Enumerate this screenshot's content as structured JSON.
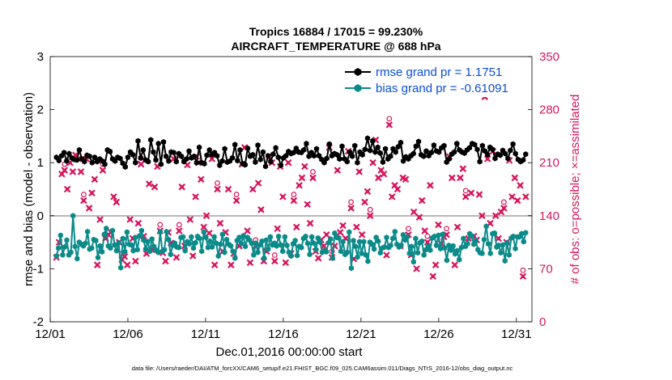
{
  "chart_data": {
    "type": "line",
    "title": "Tropics 16884 / 17015 = 99.230%",
    "subtitle": "AIRCRAFT_TEMPERATURE @ 688 hPa",
    "xlabel": "Dec.01,2016 00:00:00 start",
    "ylabel_left": "rmse and bias (model - observation)",
    "ylabel_right": "# of obs: o=possible; ×=assimilated",
    "footnote": "data file: /Users/raeder/DAI/ATM_forcXX/CAM6_setup/f.e21.FHIST_BGC.f09_025.CAM6assim.011/Diags_NTrS_2016-12/obs_diag_output.nc",
    "x_range": [
      1,
      32
    ],
    "ylim_left": [
      -2,
      3
    ],
    "ylim_right": [
      0,
      350
    ],
    "x_ticks": [
      "12/01",
      "12/06",
      "12/11",
      "12/16",
      "12/21",
      "12/26",
      "12/31"
    ],
    "y_ticks_left": [
      "-2",
      "-1",
      "0",
      "1",
      "2",
      "3"
    ],
    "y_ticks_right": [
      "0",
      "70",
      "140",
      "210",
      "280",
      "350"
    ],
    "colors": {
      "rmse": "#000000",
      "bias": "#0b8a8a",
      "obs": "#d6185f",
      "zero": "#b8b8b8",
      "legend_text": "#0b4fd6"
    },
    "series": [
      {
        "name": "rmse grand pr = 1.1751",
        "axis": "left",
        "values": [
          1.1,
          1.04,
          1.13,
          1.19,
          1.03,
          1.17,
          1.09,
          1.06,
          1.05,
          1.24,
          1.07,
          1.02,
          1.14,
          1.12,
          1.0,
          1.1,
          1.02,
          1.07,
          1.03,
          0.97,
          1.24,
          1.21,
          1.07,
          1.03,
          1.1,
          1.08,
          0.99,
          0.92,
          1.1,
          1.2,
          1.15,
          1.0,
          1.41,
          1.09,
          1.24,
          1.05,
          1.02,
          1.43,
          1.2,
          1.05,
          1.36,
          0.97,
          1.39,
          1.12,
          1.03,
          1.2,
          1.19,
          1.02,
          1.17,
          1.12,
          1.02,
          1.07,
          1.22,
          1.09,
          1.12,
          1.0,
          1.29,
          1.0,
          0.98,
          1.14,
          1.24,
          1.15,
          1.19,
          1.13,
          0.95,
          1.03,
          1.26,
          1.01,
          1.03,
          1.09,
          1.34,
          1.04,
          1.24,
          0.98,
          0.96,
          1.27,
          1.12,
          1.15,
          1.01,
          1.33,
          1.06,
          1.2,
          0.93,
          1.13,
          1.02,
          1.16,
          1.28,
          1.1,
          0.95,
          1.09,
          1.13,
          1.21,
          1.17,
          1.19,
          1.27,
          1.2,
          1.19,
          1.24,
          1.36,
          1.12,
          1.19,
          1.13,
          1.26,
          1.13,
          1.06,
          1.0,
          1.08,
          1.35,
          1.13,
          1.17,
          1.15,
          1.07,
          1.31,
          1.07,
          1.02,
          1.2,
          1.12,
          1.32,
          1.0,
          1.2,
          1.15,
          1.25,
          1.46,
          1.23,
          1.41,
          1.2,
          1.29,
          1.18,
          1.01,
          1.26,
          1.07,
          1.12,
          1.26,
          1.2,
          1.3,
          1.38,
          1.03,
          1.11,
          1.07,
          1.13,
          1.17,
          1.31,
          1.4,
          1.15,
          1.12,
          1.22,
          1.13,
          1.19,
          1.33,
          1.22,
          1.2,
          1.28,
          1.32,
          1.01,
          1.07,
          1.16,
          1.2,
          1.36,
          1.24,
          1.2,
          1.18,
          1.24,
          1.28,
          1.36,
          1.34,
          1.25,
          1.02,
          1.32,
          1.22,
          1.15,
          1.29,
          1.25,
          1.08,
          1.16,
          1.14,
          1.23,
          1.17,
          1.08,
          1.23,
          1.35,
          1.17,
          1.06,
          1.02,
          1.05,
          1.16
        ]
      },
      {
        "name": "bias grand pr = -0.61091",
        "axis": "left",
        "values": [
          -0.76,
          -0.61,
          -0.37,
          -0.74,
          -0.59,
          -0.46,
          -0.74,
          -0.69,
          0.0,
          -0.58,
          -0.81,
          -0.5,
          -0.54,
          -0.57,
          -0.52,
          -0.3,
          -0.63,
          -0.61,
          -0.45,
          -0.47,
          -0.79,
          -0.57,
          -0.68,
          -0.35,
          -0.24,
          -0.57,
          -0.61,
          -0.28,
          -0.55,
          -0.66,
          -0.51,
          -0.98,
          -0.43,
          -0.68,
          -0.31,
          -0.54,
          -0.55,
          -0.66,
          -0.41,
          -0.64,
          -0.38,
          -0.28,
          -0.46,
          -0.63,
          -0.49,
          -0.67,
          -0.44,
          -0.58,
          -0.65,
          -0.69,
          -0.31,
          -0.67,
          -0.64,
          -0.3,
          -0.45,
          -0.73,
          -0.56,
          -0.52,
          -0.59,
          -0.6,
          -0.41,
          -0.4,
          -0.66,
          -0.49,
          -0.53,
          -0.4,
          -0.61,
          -0.51,
          -0.39,
          -0.43,
          -0.67,
          -0.31,
          -0.41,
          -0.6,
          -0.48,
          -0.59,
          -0.4,
          -0.52,
          -0.76,
          -0.54,
          -0.35,
          -0.69,
          -0.45,
          -0.54,
          -0.57,
          -0.67,
          -0.8,
          -0.47,
          -0.41,
          -0.53,
          -0.38,
          -0.58,
          -0.41,
          -0.46,
          -0.52,
          -0.74,
          -0.52,
          -0.69,
          -0.55,
          -0.48,
          -0.8,
          -0.46,
          -0.63,
          -0.4,
          -0.55,
          -0.52,
          -0.57,
          -0.39,
          -0.55,
          -0.67,
          -0.4,
          -0.56,
          -0.69,
          -0.76,
          -0.53,
          -0.47,
          -0.75,
          -0.58,
          -0.6,
          -0.43,
          -0.39,
          -0.52,
          -0.73,
          -0.4,
          -0.52,
          -0.64,
          -0.42,
          -0.5,
          -0.69,
          -0.66,
          -0.68,
          -0.51,
          -0.44,
          -0.8,
          -0.33,
          -0.41,
          -0.42,
          -0.67,
          -0.49,
          -0.73,
          -0.69,
          -0.31,
          -0.99,
          -0.47,
          -0.58,
          -0.78,
          -0.49,
          -0.71,
          -0.49,
          -0.74,
          -0.86,
          -0.5,
          -0.54,
          -0.63,
          -0.41,
          -0.48,
          -0.7,
          -0.61,
          -0.59,
          -0.41,
          -0.6,
          -0.56,
          -0.43,
          -0.3,
          -0.54,
          -0.59,
          -0.56,
          -0.36,
          -0.46,
          -0.4,
          -0.71,
          -0.58,
          -0.87,
          -0.43,
          -0.7,
          -0.51,
          -0.48,
          -0.74,
          -0.64,
          -0.57,
          -0.65,
          -0.42,
          -0.39,
          -0.56,
          -0.37,
          -0.62,
          -0.35,
          -0.61,
          -0.84,
          -0.56,
          -0.65,
          -0.57,
          -0.72,
          -0.66,
          -0.83,
          -0.6,
          -0.43,
          -0.58,
          -0.53,
          -0.34,
          -0.38,
          -0.54,
          -0.47,
          -0.64,
          -0.7,
          -0.71,
          -0.45,
          -0.2,
          -0.53,
          -0.71,
          -0.34,
          -0.33,
          -0.59,
          -0.56,
          -0.7,
          -0.55,
          -0.85,
          -0.51,
          -0.74,
          -0.42,
          -0.39,
          -0.62,
          -0.4,
          -0.4,
          -0.34,
          -0.49,
          -0.32
        ]
      },
      {
        "name": "# of obs assimilated",
        "axis": "right",
        "marker": "x",
        "values": [
          85,
          105,
          195,
          200,
          175,
          210,
          198,
          220,
          215,
          198,
          160,
          215,
          150,
          170,
          188,
          75,
          135,
          200,
          110,
          115,
          118,
          165,
          158,
          105,
          82,
          86,
          75,
          135,
          110,
          80,
          130,
          208,
          113,
          90,
          182,
          95,
          178,
          205,
          120,
          91,
          80,
          118,
          104,
          215,
          85,
          120,
          178,
          100,
          207,
          135,
          87,
          165,
          210,
          188,
          125,
          140,
          117,
          215,
          75,
          175,
          130,
          93,
          118,
          175,
          75,
          90,
          160,
          100,
          208,
          230,
          120,
          78,
          175,
          100,
          183,
          148,
          80,
          93,
          218,
          210,
          80,
          123,
          205,
          165,
          78,
          210,
          90,
          160,
          125,
          180,
          190,
          205,
          155,
          130,
          190,
          93,
          84,
          108,
          100,
          115,
          230,
          85,
          100,
          200,
          118,
          127,
          110,
          225,
          150,
          83,
          125,
          198,
          115,
          158,
          172,
          140,
          210,
          240,
          190,
          200,
          195,
          88,
          260,
          165,
          180,
          175,
          100,
          190,
          188,
          115,
          88,
          145,
          70,
          138,
          160,
          120,
          105,
          180,
          60,
          75,
          128,
          103,
          112,
          115,
          218,
          190,
          75,
          125,
          190,
          202,
          165,
          110,
          170,
          113,
          108,
          168,
          140,
          297,
          215,
          130,
          225,
          140,
          110,
          145,
          150,
          105,
          213,
          165,
          190,
          160,
          180,
          60,
          165
        ],
        "ticks_x_label_only": true
      }
    ],
    "obs_possible_markers": 22,
    "legend_position": "top-right"
  }
}
